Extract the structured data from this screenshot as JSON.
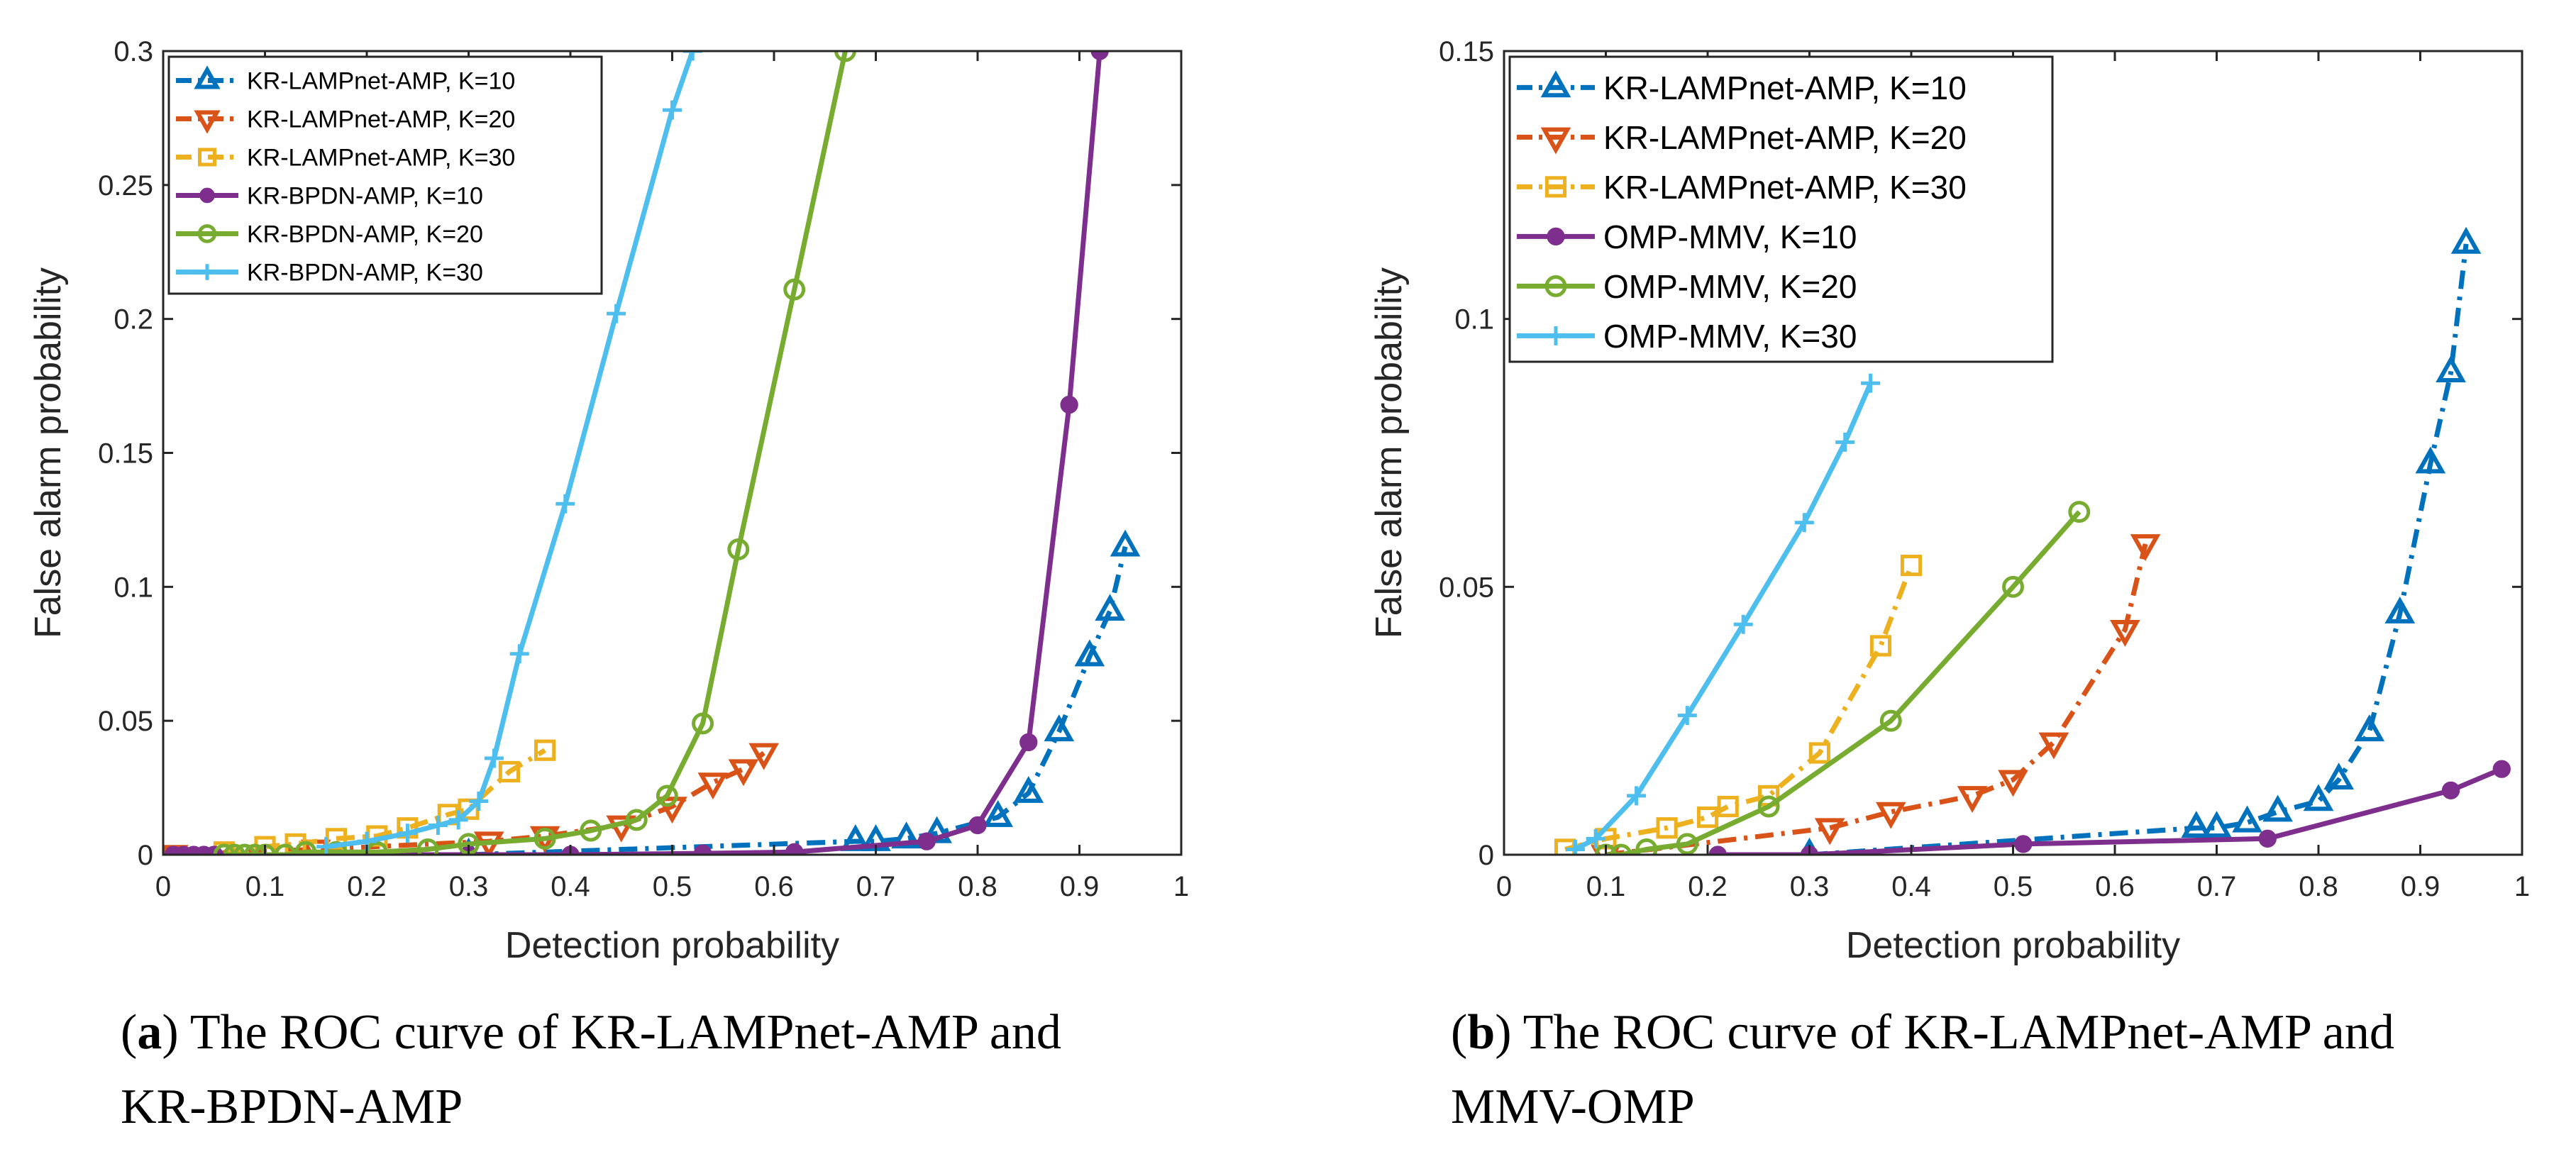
{
  "chart_data": [
    {
      "type": "line",
      "xlabel": "Detection probability",
      "ylabel": "False alarm probability",
      "xlim": [
        0,
        1
      ],
      "ylim": [
        0,
        0.3
      ],
      "xticks": [
        "0",
        "0.1",
        "0.2",
        "0.3",
        "0.4",
        "0.5",
        "0.6",
        "0.7",
        "0.8",
        "0.9",
        "1"
      ],
      "yticks": [
        "0",
        "0.05",
        "0.1",
        "0.15",
        "0.2",
        "0.25",
        "0.3"
      ],
      "grid": false,
      "legend_position": "top-left",
      "caption": {
        "tag": "a",
        "lines": [
          "The ROC curve of KR-LAMPnet-AMP and",
          "KR-BPDN-AMP"
        ]
      },
      "series": [
        {
          "name": "KR-LAMPnet-AMP, K=10",
          "color": "#0072BD",
          "style": "dashdot",
          "marker": "triangle-up",
          "x": [
            0.3,
            0.68,
            0.7,
            0.73,
            0.76,
            0.82,
            0.85,
            0.88,
            0.91,
            0.93,
            0.945
          ],
          "y": [
            0.0,
            0.005,
            0.005,
            0.006,
            0.008,
            0.014,
            0.023,
            0.046,
            0.074,
            0.091,
            0.115
          ]
        },
        {
          "name": "KR-LAMPnet-AMP, K=20",
          "color": "#D95319",
          "style": "dashdot",
          "marker": "triangle-down",
          "x": [
            0.01,
            0.15,
            0.32,
            0.375,
            0.45,
            0.5,
            0.54,
            0.57,
            0.59
          ],
          "y": [
            0.0,
            0.002,
            0.005,
            0.007,
            0.011,
            0.018,
            0.027,
            0.032,
            0.038
          ]
        },
        {
          "name": "KR-LAMPnet-AMP, K=30",
          "color": "#EDB120",
          "style": "dashdot",
          "marker": "square",
          "x": [
            0.06,
            0.1,
            0.13,
            0.17,
            0.21,
            0.24,
            0.28,
            0.3,
            0.34,
            0.375
          ],
          "y": [
            0.001,
            0.003,
            0.004,
            0.006,
            0.007,
            0.01,
            0.015,
            0.017,
            0.031,
            0.039
          ]
        },
        {
          "name": "KR-BPDN-AMP, K=10",
          "color": "#7E2F8E",
          "style": "solid",
          "marker": "circle",
          "x": [
            0.01,
            0.02,
            0.03,
            0.04,
            0.05,
            0.3,
            0.4,
            0.53,
            0.62,
            0.75,
            0.8,
            0.85,
            0.89,
            0.92
          ],
          "y": [
            0.0,
            0.0,
            0.0,
            0.0,
            0.0,
            0.0,
            0.0,
            0.0005,
            0.001,
            0.005,
            0.011,
            0.042,
            0.168,
            0.3
          ]
        },
        {
          "name": "KR-BPDN-AMP, K=20",
          "color": "#77AC30",
          "style": "solid",
          "marker": "circle-open",
          "x": [
            0.06,
            0.07,
            0.08,
            0.09,
            0.1,
            0.12,
            0.14,
            0.17,
            0.21,
            0.26,
            0.3,
            0.375,
            0.42,
            0.465,
            0.495,
            0.53,
            0.565,
            0.62,
            0.67
          ],
          "y": [
            0.0,
            0.0,
            0.0,
            0.0,
            0.0,
            0.0,
            0.001,
            0.001,
            0.001,
            0.002,
            0.004,
            0.006,
            0.009,
            0.013,
            0.022,
            0.049,
            0.114,
            0.211,
            0.3
          ]
        },
        {
          "name": "KR-BPDN-AMP, K=30",
          "color": "#4DBEEE",
          "style": "solid",
          "marker": "plus",
          "x": [
            0.16,
            0.2,
            0.24,
            0.27,
            0.29,
            0.31,
            0.325,
            0.35,
            0.395,
            0.445,
            0.5,
            0.52
          ],
          "y": [
            0.003,
            0.005,
            0.008,
            0.011,
            0.013,
            0.02,
            0.036,
            0.075,
            0.131,
            0.202,
            0.278,
            0.3
          ]
        }
      ]
    },
    {
      "type": "line",
      "xlabel": "Detection probability",
      "ylabel": "False alarm probability",
      "xlim": [
        0,
        1
      ],
      "ylim": [
        0,
        0.15
      ],
      "xticks": [
        "0",
        "0.1",
        "0.2",
        "0.3",
        "0.4",
        "0.5",
        "0.6",
        "0.7",
        "0.8",
        "0.9",
        "1"
      ],
      "yticks": [
        "0",
        "0.05",
        "0.1",
        "0.15"
      ],
      "grid": false,
      "legend_position": "top-left",
      "caption": {
        "tag": "b",
        "lines": [
          "The ROC curve of KR-LAMPnet-AMP and",
          "MMV-OMP"
        ]
      },
      "series": [
        {
          "name": "KR-LAMPnet-AMP, K=10",
          "color": "#0072BD",
          "style": "dashdot",
          "marker": "triangle-up",
          "x": [
            0.3,
            0.68,
            0.7,
            0.73,
            0.76,
            0.8,
            0.82,
            0.85,
            0.88,
            0.91,
            0.93,
            0.945
          ],
          "y": [
            0.0,
            0.005,
            0.005,
            0.006,
            0.008,
            0.01,
            0.014,
            0.023,
            0.045,
            0.073,
            0.09,
            0.114
          ]
        },
        {
          "name": "KR-LAMPnet-AMP, K=20",
          "color": "#D95319",
          "style": "dashdot",
          "marker": "triangle-down",
          "x": [
            0.1,
            0.32,
            0.38,
            0.46,
            0.5,
            0.54,
            0.61,
            0.63
          ],
          "y": [
            0.0,
            0.005,
            0.008,
            0.011,
            0.014,
            0.021,
            0.042,
            0.058
          ]
        },
        {
          "name": "KR-LAMPnet-AMP, K=30",
          "color": "#EDB120",
          "style": "dashdot",
          "marker": "square",
          "x": [
            0.06,
            0.1,
            0.16,
            0.2,
            0.22,
            0.26,
            0.31,
            0.37,
            0.4
          ],
          "y": [
            0.001,
            0.003,
            0.005,
            0.007,
            0.009,
            0.011,
            0.019,
            0.039,
            0.054
          ]
        },
        {
          "name": "OMP-MMV, K=10",
          "color": "#7E2F8E",
          "style": "solid",
          "marker": "circle",
          "x": [
            0.21,
            0.3,
            0.51,
            0.75,
            0.93,
            0.98
          ],
          "y": [
            0.0,
            0.0,
            0.002,
            0.003,
            0.012,
            0.016
          ]
        },
        {
          "name": "OMP-MMV, K=20",
          "color": "#77AC30",
          "style": "solid",
          "marker": "circle-open",
          "x": [
            0.1,
            0.115,
            0.14,
            0.18,
            0.26,
            0.38,
            0.5,
            0.565
          ],
          "y": [
            0.0,
            0.0,
            0.001,
            0.002,
            0.009,
            0.025,
            0.05,
            0.064
          ]
        },
        {
          "name": "OMP-MMV, K=30",
          "color": "#4DBEEE",
          "style": "solid",
          "marker": "plus",
          "x": [
            0.07,
            0.09,
            0.13,
            0.18,
            0.235,
            0.295,
            0.335,
            0.36
          ],
          "y": [
            0.001,
            0.003,
            0.011,
            0.026,
            0.043,
            0.062,
            0.077,
            0.088
          ]
        }
      ]
    }
  ]
}
